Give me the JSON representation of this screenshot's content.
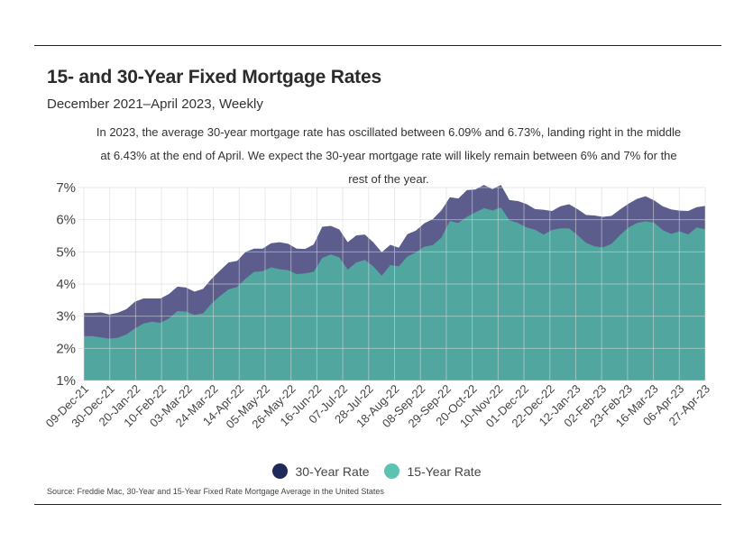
{
  "header": {
    "title": "15- and 30-Year Fixed Mortgage Rates",
    "subtitle": "December 2021–April 2023, Weekly",
    "note": "In 2023, the average 30-year mortgage rate has oscillated between 6.09% and 6.73%, landing right in the middle at 6.43% at the end of April. We expect the 30-year mortgage rate will likely remain between 6% and 7% for the rest of the year."
  },
  "source": "Source:  Freddie Mac, 30-Year  and 15-Year Fixed Rate Mortgage Average in the United States",
  "colors": {
    "rate30": "#5c5d8d",
    "rate15": "#52a6a0",
    "legend30": "#1f2a5a",
    "legend15": "#5cc2b1"
  },
  "chart_data": {
    "type": "area",
    "title": "15- and 30-Year Fixed Mortgage Rates",
    "xlabel": "",
    "ylabel": "",
    "ylim": [
      1,
      7
    ],
    "yticks": [
      "1%",
      "2%",
      "3%",
      "4%",
      "5%",
      "6%",
      "7%"
    ],
    "grid": true,
    "legend": "bottom-center",
    "x_tick_labels": [
      "09-Dec-21",
      "30-Dec-21",
      "20-Jan-22",
      "10-Feb-22",
      "03-Mar-22",
      "24-Mar-22",
      "14-Apr-22",
      "05-May-22",
      "26-May-22",
      "16-Jun-22",
      "07-Jul-22",
      "28-Jul-22",
      "18-Aug-22",
      "08-Sep-22",
      "29-Sep-22",
      "20-Oct-22",
      "10-Nov-22",
      "01-Dec-22",
      "22-Dec-22",
      "12-Jan-23",
      "02-Feb-23",
      "23-Feb-23",
      "16-Mar-23",
      "06-Apr-23",
      "27-Apr-23"
    ],
    "series": [
      {
        "name": "30-Year Rate",
        "values": [
          3.1,
          3.1,
          3.12,
          3.05,
          3.11,
          3.22,
          3.45,
          3.55,
          3.55,
          3.55,
          3.69,
          3.92,
          3.89,
          3.76,
          3.85,
          4.16,
          4.42,
          4.67,
          4.72,
          5.0,
          5.1,
          5.1,
          5.27,
          5.3,
          5.25,
          5.1,
          5.09,
          5.23,
          5.78,
          5.81,
          5.7,
          5.3,
          5.51,
          5.54,
          5.3,
          4.99,
          5.22,
          5.13,
          5.55,
          5.66,
          5.89,
          6.02,
          6.29,
          6.7,
          6.66,
          6.92,
          6.94,
          7.08,
          6.95,
          7.08,
          6.61,
          6.58,
          6.49,
          6.33,
          6.31,
          6.27,
          6.42,
          6.48,
          6.33,
          6.15,
          6.13,
          6.09,
          6.12,
          6.32,
          6.5,
          6.65,
          6.73,
          6.6,
          6.42,
          6.32,
          6.28,
          6.27,
          6.39,
          6.43
        ]
      },
      {
        "name": "15-Year Rate",
        "values": [
          2.38,
          2.38,
          2.34,
          2.3,
          2.33,
          2.43,
          2.62,
          2.77,
          2.83,
          2.79,
          2.93,
          3.16,
          3.14,
          3.04,
          3.09,
          3.39,
          3.63,
          3.83,
          3.91,
          4.17,
          4.38,
          4.4,
          4.52,
          4.46,
          4.43,
          4.31,
          4.33,
          4.38,
          4.81,
          4.92,
          4.83,
          4.45,
          4.67,
          4.75,
          4.55,
          4.26,
          4.59,
          4.55,
          4.85,
          4.98,
          5.16,
          5.21,
          5.44,
          5.96,
          5.9,
          6.09,
          6.23,
          6.36,
          6.29,
          6.38,
          5.98,
          5.9,
          5.76,
          5.69,
          5.54,
          5.68,
          5.73,
          5.73,
          5.52,
          5.28,
          5.17,
          5.14,
          5.25,
          5.52,
          5.76,
          5.9,
          5.95,
          5.91,
          5.68,
          5.56,
          5.64,
          5.54,
          5.76,
          5.7
        ]
      }
    ]
  }
}
